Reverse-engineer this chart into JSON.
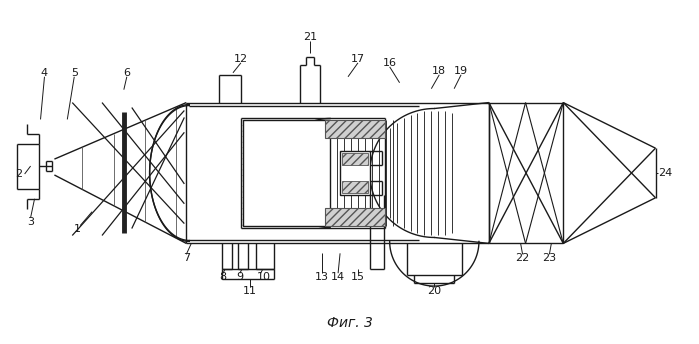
{
  "title": "Фиг. 3",
  "bg_color": "#ffffff",
  "lc": "#1a1a1a",
  "fig_width": 6.99,
  "fig_height": 3.44,
  "dpi": 100
}
